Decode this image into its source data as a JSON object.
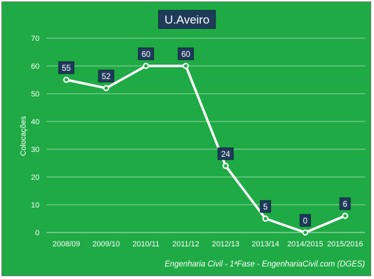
{
  "chart_data": {
    "type": "line",
    "title": "U.Aveiro",
    "ylabel": "Colocações",
    "xlabel": "",
    "categories": [
      "2008/09",
      "2009/10",
      "2010/11",
      "2011/12",
      "2012/13",
      "2013/14",
      "2014/2015",
      "2015/2016"
    ],
    "series": [
      {
        "values": [
          55,
          52,
          60,
          60,
          24,
          5,
          0,
          6
        ]
      }
    ],
    "ylim": [
      0,
      70
    ],
    "yticks": [
      0,
      10,
      20,
      30,
      40,
      50,
      60,
      70
    ],
    "grid": true,
    "data_labels": true,
    "footnote": "Engenharia Civil - 1ªFase - EngenhariaCivil.com  (DGES)"
  },
  "colors": {
    "background": "#1faa45",
    "line": "#ffffff",
    "label_box": "#1f3b5a",
    "title_box": "#1f3b5a",
    "text": "#ffffff",
    "gridline": "#8fd6a2"
  }
}
